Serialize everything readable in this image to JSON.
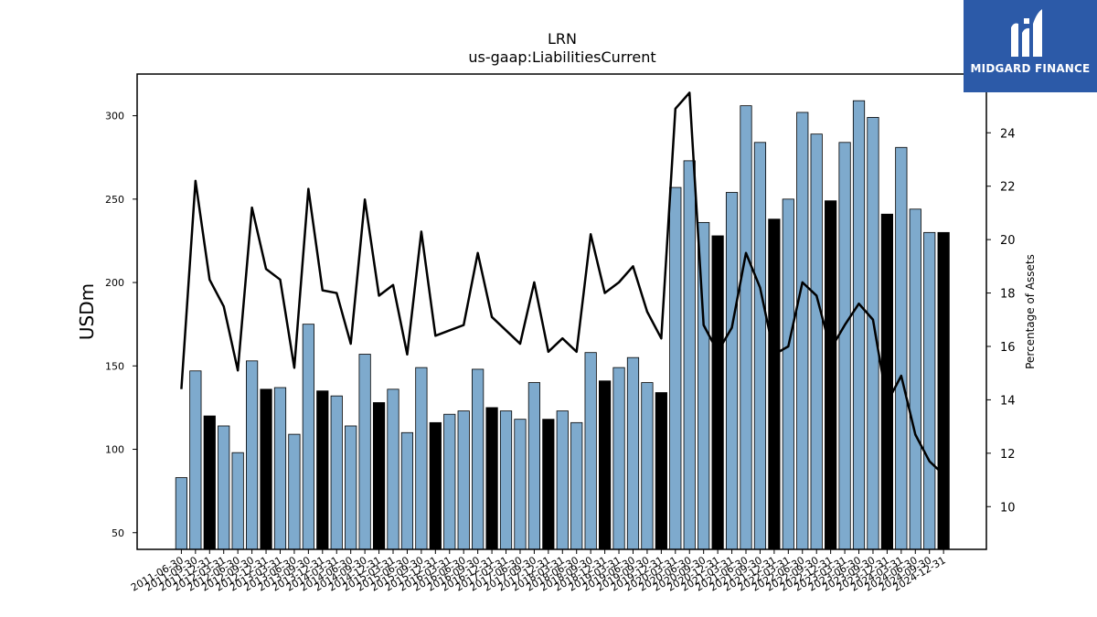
{
  "chart_data": {
    "type": "bar",
    "title": "LRN",
    "subtitle": "us-gaap:LiabilitiesCurrent",
    "ylabel": "USDm",
    "ylabel_right": "Percentage of Assets",
    "ylim": [
      40,
      325
    ],
    "ylim_right": [
      8.4,
      26.2
    ],
    "yticks": [
      50,
      100,
      150,
      200,
      250,
      300
    ],
    "yticks_right": [
      10,
      12,
      14,
      16,
      18,
      20,
      22,
      24
    ],
    "categories": [
      "2011-06-30",
      "2011-09-30",
      "2011-12-31",
      "2012-03-31",
      "2012-06-30",
      "2012-09-30",
      "2012-12-31",
      "2013-03-31",
      "2013-06-30",
      "2013-09-30",
      "2013-12-31",
      "2014-03-31",
      "2014-06-30",
      "2014-09-30",
      "2014-12-31",
      "2015-03-31",
      "2015-06-30",
      "2015-09-30",
      "2015-12-31",
      "2016-03-31",
      "2016-06-30",
      "2016-09-30",
      "2016-12-31",
      "2017-03-31",
      "2017-06-30",
      "2017-09-30",
      "2017-12-31",
      "2018-03-31",
      "2018-06-30",
      "2018-09-30",
      "2018-12-31",
      "2019-03-31",
      "2019-06-30",
      "2019-09-30",
      "2019-12-31",
      "2020-03-31",
      "2020-06-30",
      "2020-09-30",
      "2020-12-31",
      "2021-03-31",
      "2021-06-30",
      "2021-09-30",
      "2021-12-31",
      "2022-03-31",
      "2022-06-30",
      "2022-09-30",
      "2022-12-31",
      "2023-03-31",
      "2023-06-30",
      "2023-09-30",
      "2023-12-31",
      "2024-03-31",
      "2024-06-30",
      "2024-09-30",
      "2024-12-31"
    ],
    "series": [
      {
        "type": "bar",
        "values": [
          83,
          147,
          120,
          114,
          98,
          153,
          136,
          137,
          109,
          175,
          135,
          132,
          114,
          157,
          128,
          136,
          110,
          149,
          116,
          121,
          123,
          148,
          125,
          123,
          118,
          140,
          118,
          123,
          116,
          158,
          141,
          149,
          155,
          140,
          134,
          257,
          273,
          236,
          228,
          254,
          306,
          284,
          238,
          250,
          302,
          289,
          249,
          284,
          309,
          299,
          241,
          281,
          244,
          230,
          230
        ],
        "highlight": [
          false,
          false,
          true,
          false,
          false,
          false,
          true,
          false,
          false,
          false,
          true,
          false,
          false,
          false,
          true,
          false,
          false,
          false,
          true,
          false,
          false,
          false,
          true,
          false,
          false,
          false,
          true,
          false,
          false,
          false,
          true,
          false,
          false,
          false,
          true,
          false,
          false,
          false,
          true,
          false,
          false,
          false,
          true,
          false,
          false,
          false,
          true,
          false,
          false,
          false,
          true,
          false,
          false,
          false,
          true
        ],
        "color": "#7eaacd",
        "highlight_color": "#000000"
      },
      {
        "type": "line",
        "axis": "right",
        "values": [
          14.4,
          22.2,
          18.5,
          17.5,
          15.1,
          21.2,
          18.9,
          18.5,
          15.2,
          21.9,
          18.1,
          18.0,
          16.1,
          21.5,
          17.9,
          18.3,
          15.7,
          20.3,
          16.4,
          16.6,
          16.8,
          19.5,
          17.1,
          16.6,
          16.1,
          18.4,
          15.8,
          16.3,
          15.8,
          20.2,
          18.0,
          18.4,
          19.0,
          17.3,
          16.3,
          24.9,
          25.5,
          16.8,
          15.8,
          16.7,
          19.5,
          18.2,
          15.7,
          16.0,
          18.4,
          17.9,
          15.9,
          16.8,
          17.6,
          17.0,
          13.9,
          14.9,
          12.7,
          11.7,
          11.2
        ],
        "color": "#000000"
      }
    ],
    "grid": false,
    "legend": "none"
  },
  "logo": {
    "text": "MIDGARD FINANCE",
    "background": "#2c5aa8"
  }
}
